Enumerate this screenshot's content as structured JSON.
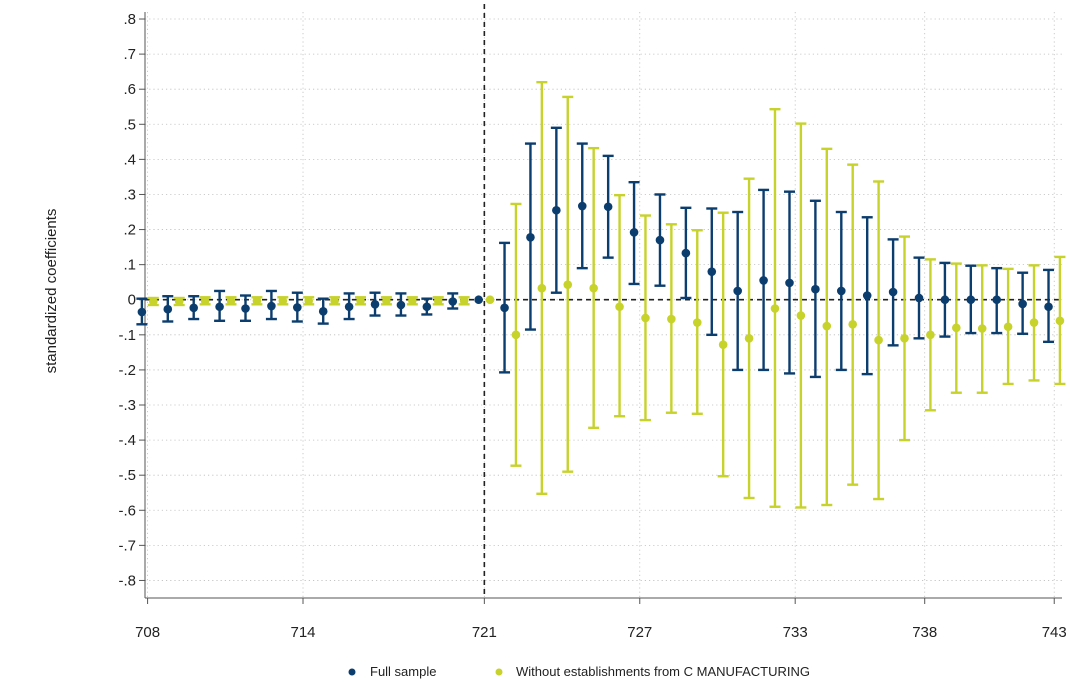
{
  "chart_data": {
    "type": "scatter",
    "title": "",
    "xlabel": "",
    "ylabel": "standardized coefficients",
    "xlim": [
      707.9,
      743.3
    ],
    "ylim": [
      -0.85,
      0.82
    ],
    "x_ticks": [
      708,
      714,
      721,
      727,
      733,
      738,
      743
    ],
    "x_tick_labels": [
      "708",
      "714",
      "721",
      "727",
      "733",
      "738",
      "743"
    ],
    "y_ticks": [
      0.8,
      0.7,
      0.6,
      0.5,
      0.4,
      0.3,
      0.2,
      0.1,
      0,
      -0.1,
      -0.2,
      -0.3,
      -0.4,
      -0.5,
      -0.6,
      -0.7,
      -0.8
    ],
    "y_tick_labels": [
      ".8",
      ".7",
      ".6",
      ".5",
      ".4",
      ".3",
      ".2",
      ".1",
      "0",
      "-.1",
      "-.2",
      "-.3",
      "-.4",
      "-.5",
      "-.6",
      "-.7",
      "-.8"
    ],
    "grid": true,
    "reference_lines": {
      "x": 721,
      "y": 0
    },
    "legend": {
      "placement": "bottom"
    },
    "series": [
      {
        "name": "Full sample",
        "color": "#0b3d6e",
        "offset": -0.22,
        "x": [
          708,
          709,
          710,
          711,
          712,
          713,
          714,
          715,
          716,
          717,
          718,
          719,
          720,
          721,
          722,
          723,
          724,
          725,
          726,
          727,
          728,
          729,
          730,
          731,
          732,
          733,
          734,
          735,
          736,
          737,
          738,
          739,
          740,
          741,
          742,
          743
        ],
        "y": [
          -0.035,
          -0.027,
          -0.023,
          -0.02,
          -0.025,
          -0.018,
          -0.022,
          -0.033,
          -0.02,
          -0.013,
          -0.015,
          -0.02,
          -0.005,
          0,
          -0.023,
          0.178,
          0.255,
          0.267,
          0.265,
          0.192,
          0.17,
          0.133,
          0.08,
          0.025,
          0.055,
          0.048,
          0.03,
          0.025,
          0.012,
          0.022,
          0.005,
          0,
          0,
          0,
          -0.012,
          -0.02
        ],
        "lo": [
          -0.07,
          -0.062,
          -0.055,
          -0.06,
          -0.06,
          -0.055,
          -0.062,
          -0.068,
          -0.055,
          -0.045,
          -0.045,
          -0.042,
          -0.025,
          0,
          -0.207,
          -0.085,
          0.02,
          0.09,
          0.12,
          0.045,
          0.04,
          0.005,
          -0.1,
          -0.2,
          -0.2,
          -0.21,
          -0.22,
          -0.2,
          -0.212,
          -0.13,
          -0.11,
          -0.105,
          -0.095,
          -0.095,
          -0.097,
          -0.12
        ],
        "hi": [
          0.003,
          0.01,
          0.01,
          0.025,
          0.012,
          0.025,
          0.02,
          0.003,
          0.018,
          0.02,
          0.018,
          0.003,
          0.018,
          0,
          0.162,
          0.445,
          0.49,
          0.445,
          0.41,
          0.335,
          0.3,
          0.262,
          0.26,
          0.25,
          0.313,
          0.308,
          0.282,
          0.25,
          0.235,
          0.172,
          0.12,
          0.105,
          0.097,
          0.09,
          0.077,
          0.085
        ]
      },
      {
        "name": "Without establishments from C MANUFACTURING",
        "color": "#c7d22b",
        "offset": 0.22,
        "x": [
          708,
          709,
          710,
          711,
          712,
          713,
          714,
          715,
          716,
          717,
          718,
          719,
          720,
          721,
          722,
          723,
          724,
          725,
          726,
          727,
          728,
          729,
          730,
          731,
          732,
          733,
          734,
          735,
          736,
          737,
          738,
          739,
          740,
          741,
          742,
          743
        ],
        "y": [
          -0.005,
          -0.005,
          -0.003,
          -0.003,
          -0.003,
          -0.003,
          -0.003,
          -0.003,
          -0.003,
          -0.003,
          -0.003,
          -0.003,
          -0.003,
          0,
          -0.1,
          0.033,
          0.043,
          0.033,
          -0.02,
          -0.052,
          -0.055,
          -0.065,
          -0.128,
          -0.11,
          -0.025,
          -0.045,
          -0.075,
          -0.07,
          -0.115,
          -0.11,
          -0.1,
          -0.08,
          -0.082,
          -0.077,
          -0.065,
          -0.06
        ],
        "lo": [
          -0.015,
          -0.015,
          -0.013,
          -0.013,
          -0.013,
          -0.013,
          -0.013,
          -0.013,
          -0.013,
          -0.013,
          -0.013,
          -0.013,
          -0.013,
          0,
          -0.473,
          -0.553,
          -0.49,
          -0.365,
          -0.332,
          -0.343,
          -0.322,
          -0.325,
          -0.503,
          -0.565,
          -0.59,
          -0.592,
          -0.585,
          -0.527,
          -0.568,
          -0.4,
          -0.315,
          -0.265,
          -0.265,
          -0.24,
          -0.23,
          -0.24
        ],
        "hi": [
          0.005,
          0.005,
          0.007,
          0.007,
          0.007,
          0.007,
          0.007,
          0.007,
          0.007,
          0.007,
          0.007,
          0.007,
          0.007,
          0,
          0.273,
          0.62,
          0.578,
          0.432,
          0.298,
          0.24,
          0.215,
          0.198,
          0.248,
          0.345,
          0.543,
          0.502,
          0.43,
          0.385,
          0.337,
          0.18,
          0.115,
          0.103,
          0.098,
          0.088,
          0.098,
          0.122
        ]
      }
    ]
  }
}
